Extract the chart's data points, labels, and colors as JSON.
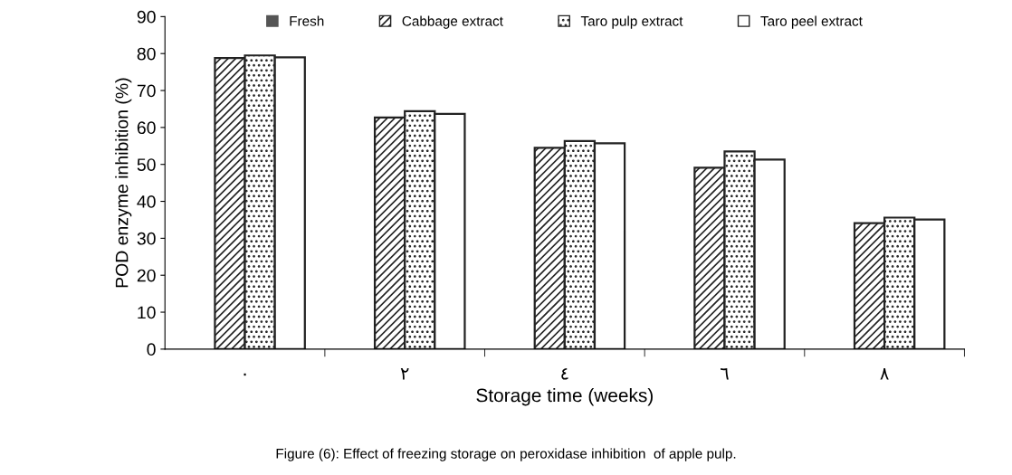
{
  "chart_data": {
    "type": "bar",
    "categories": [
      "٠",
      "٢",
      "٤",
      "٦",
      "٨"
    ],
    "xlabel": "Storage time (weeks)",
    "ylabel": "POD enzyme inhibition (%)",
    "series": [
      {
        "name": "Fresh",
        "color": "#555555",
        "values": [
          null,
          null,
          null,
          null,
          null
        ]
      },
      {
        "name": "Cabbage extract",
        "color": "#222222",
        "values": [
          78.8,
          62.7,
          54.5,
          49.1,
          34.1
        ]
      },
      {
        "name": "Taro pulp extract",
        "color": "#222222",
        "values": [
          79.5,
          64.4,
          56.3,
          53.5,
          35.6
        ]
      },
      {
        "name": "Taro peel extract",
        "color": "#222222",
        "values": [
          79.0,
          63.7,
          55.7,
          51.3,
          35.1
        ]
      }
    ],
    "ylim": [
      0,
      90
    ],
    "yticks": [
      0,
      10,
      20,
      30,
      40,
      50,
      60,
      70,
      80,
      90
    ],
    "grid": false,
    "legend": "top",
    "annotations": [
      "Figure (6): Effect of freezing storage on peroxidase inhibition  of apple pulp."
    ]
  }
}
